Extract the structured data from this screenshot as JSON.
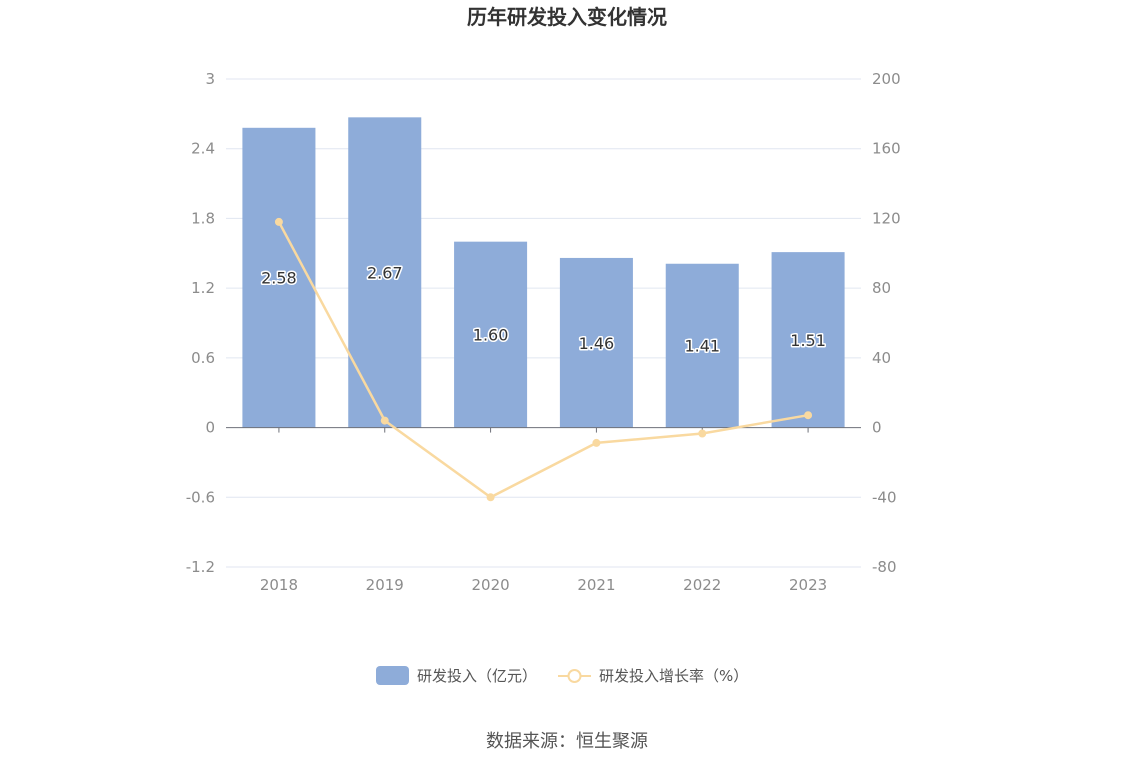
{
  "chart_data": {
    "type": "bar",
    "title": "历年研发投入变化情况",
    "categories": [
      "2018",
      "2019",
      "2020",
      "2021",
      "2022",
      "2023"
    ],
    "series": [
      {
        "name": "研发投入（亿元）",
        "type": "bar",
        "axis": "left",
        "color": "#8eacd9",
        "values": [
          2.58,
          2.67,
          1.6,
          1.46,
          1.41,
          1.51
        ],
        "labels": [
          "2.58",
          "2.67",
          "1.60",
          "1.46",
          "1.41",
          "1.51"
        ]
      },
      {
        "name": "研发投入增长率（%）",
        "type": "line",
        "axis": "right",
        "color": "#f9d9a0",
        "values": [
          118,
          4,
          -40,
          -8.8,
          -3.4,
          7.1
        ]
      }
    ],
    "y_left": {
      "ticks": [
        "3",
        "2.4",
        "1.8",
        "1.2",
        "0.6",
        "0",
        "-0.6",
        "-1.2"
      ],
      "ylim": [
        -1.2,
        3
      ]
    },
    "y_right": {
      "ticks": [
        "200",
        "160",
        "120",
        "80",
        "40",
        "0",
        "-40",
        "-80"
      ],
      "ylim": [
        -80,
        200
      ]
    },
    "grid": true,
    "legend_position": "bottom"
  },
  "source": "数据来源：恒生聚源"
}
